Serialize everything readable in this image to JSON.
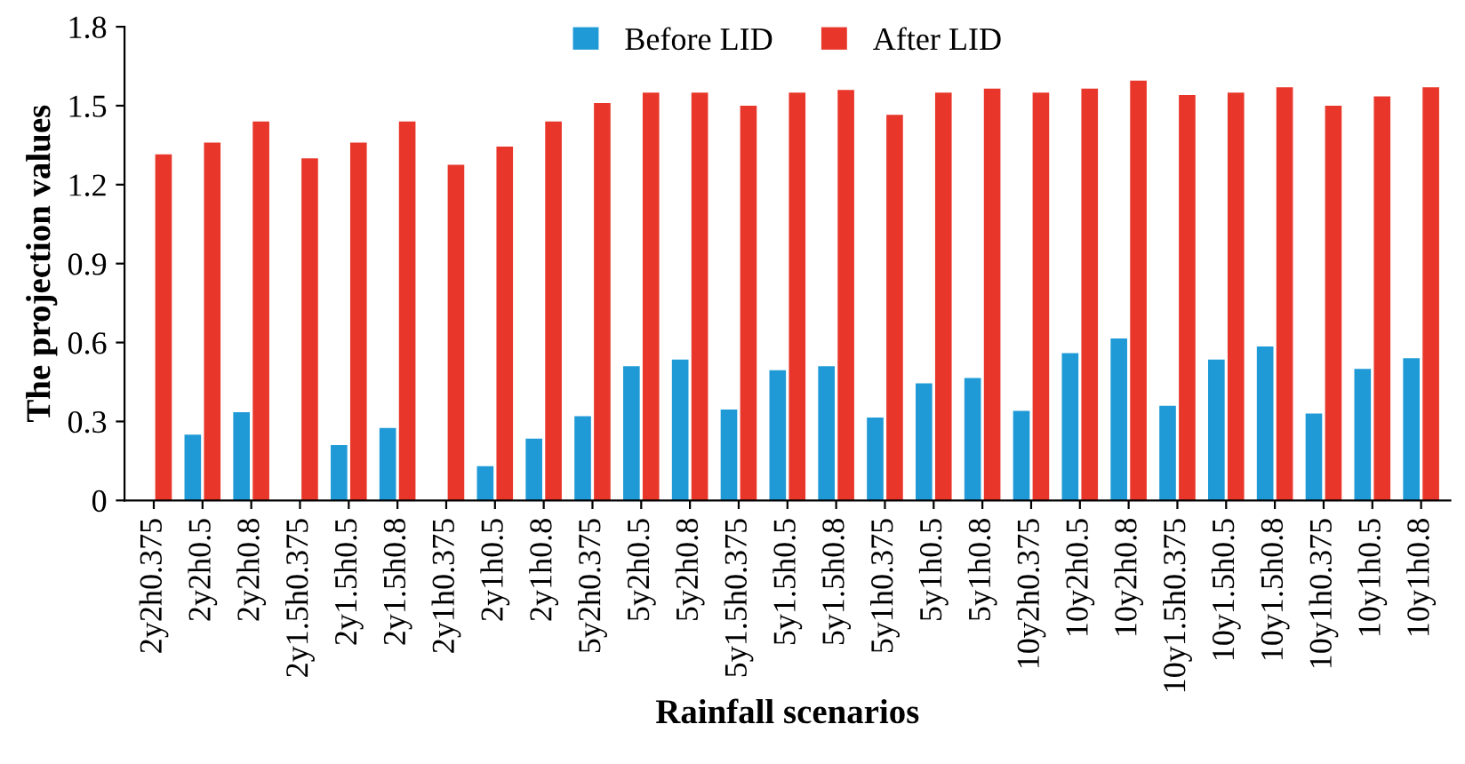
{
  "chart_data": {
    "type": "bar",
    "xlabel": "Rainfall scenarios",
    "ylabel": "The projection values",
    "categories": [
      "2y2h0.375",
      "2y2h0.5",
      "2y2h0.8",
      "2y1.5h0.375",
      "2y1.5h0.5",
      "2y1.5h0.8",
      "2y1h0.375",
      "2y1h0.5",
      "2y1h0.8",
      "5y2h0.375",
      "5y2h0.5",
      "5y2h0.8",
      "5y1.5h0.375",
      "5y1.5h0.5",
      "5y1.5h0.8",
      "5y1h0.375",
      "5y1h0.5",
      "5y1h0.8",
      "10y2h0.375",
      "10y2h0.5",
      "10y2h0.8",
      "10y1.5h0.375",
      "10y1.5h0.5",
      "10y1.5h0.8",
      "10y1h0.375",
      "10y1h0.5",
      "10y1h0.8"
    ],
    "series": [
      {
        "name": "Before LID",
        "color": "#1f9ad6",
        "values": [
          0,
          0.25,
          0.335,
          0,
          0.21,
          0.275,
          0,
          0.13,
          0.235,
          0.32,
          0.51,
          0.535,
          0.345,
          0.495,
          0.51,
          0.315,
          0.445,
          0.465,
          0.34,
          0.56,
          0.615,
          0.36,
          0.535,
          0.585,
          0.33,
          0.5,
          0.54
        ]
      },
      {
        "name": "After LID",
        "color": "#e8372a",
        "values": [
          1.315,
          1.36,
          1.44,
          1.3,
          1.36,
          1.44,
          1.275,
          1.345,
          1.44,
          1.51,
          1.55,
          1.55,
          1.5,
          1.55,
          1.56,
          1.465,
          1.55,
          1.565,
          1.55,
          1.565,
          1.595,
          1.54,
          1.55,
          1.57,
          1.5,
          1.535,
          1.57
        ]
      }
    ],
    "ylim": [
      0,
      1.8
    ],
    "yticks": [
      0,
      0.3,
      0.6,
      0.9,
      1.2,
      1.5,
      1.8
    ],
    "grid": false,
    "legend": "top"
  }
}
